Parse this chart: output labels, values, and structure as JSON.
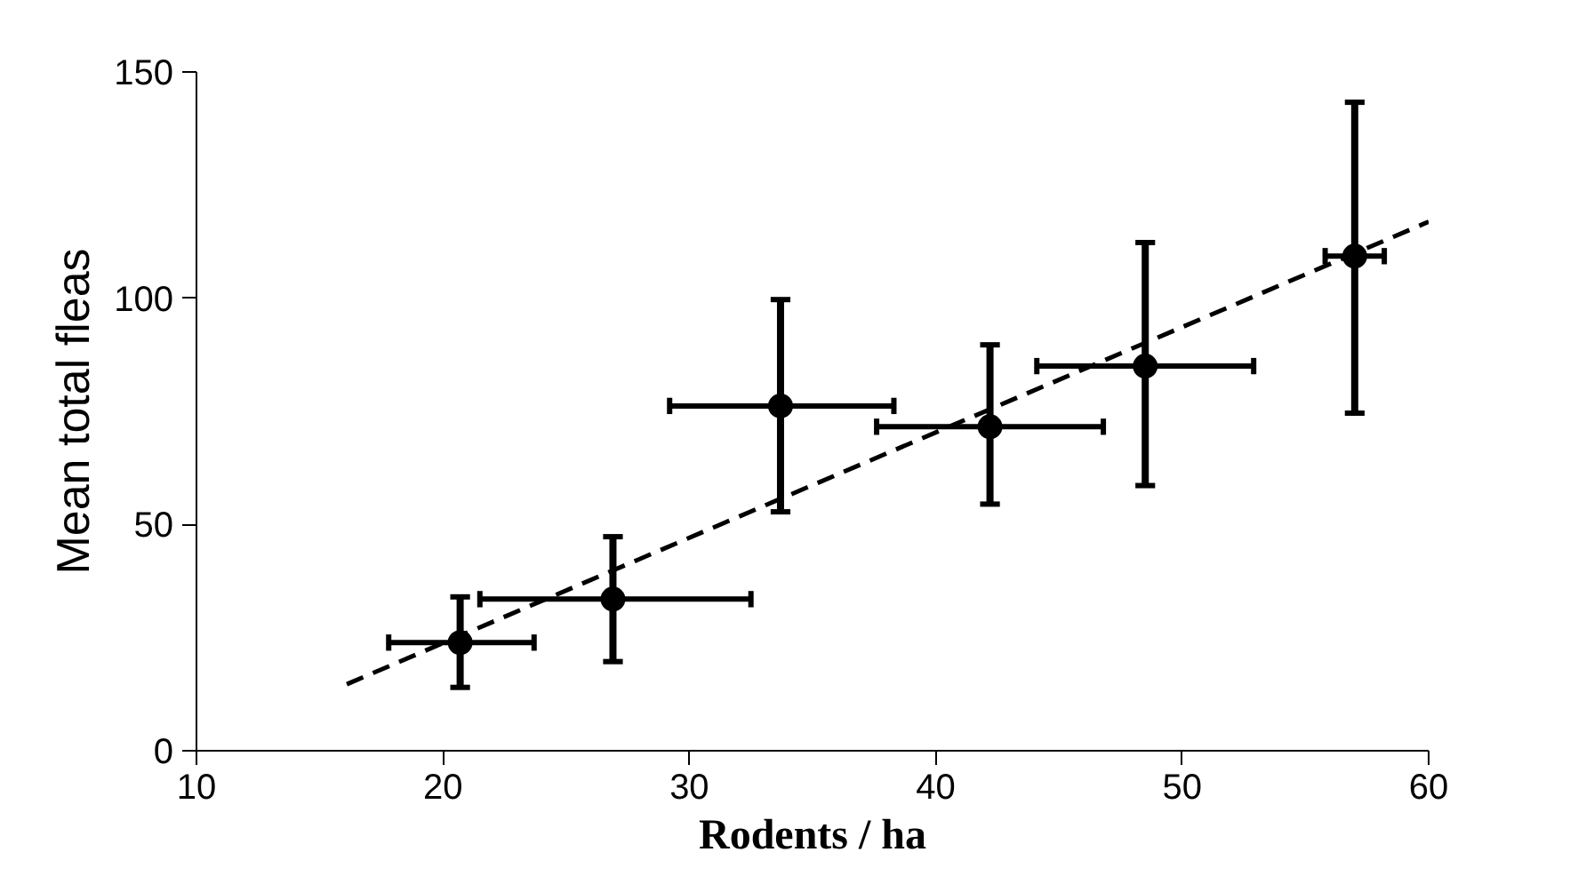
{
  "chart_data": {
    "type": "scatter",
    "xlabel": "Rodents / ha",
    "ylabel": "Mean total fleas",
    "xlim": [
      10,
      60
    ],
    "ylim": [
      0,
      150
    ],
    "xticks": [
      10,
      20,
      30,
      40,
      50,
      60
    ],
    "yticks": [
      0,
      50,
      100,
      150
    ],
    "grid": false,
    "marker": "circle",
    "series": [
      {
        "color": "#000000",
        "x": [
          20.7,
          26.9,
          33.7,
          42.2,
          48.5,
          57.0
        ],
        "values": [
          23.9,
          33.5,
          76.2,
          71.6,
          85.0,
          109.3
        ],
        "errors": [
          [
            14,
            34
          ],
          [
            19.7,
            47.3
          ],
          [
            52.8,
            99.7
          ],
          [
            54.5,
            89.7
          ],
          [
            58.6,
            112.3
          ],
          [
            74.6,
            143.3
          ]
        ],
        "xerrors": [
          [
            17.8,
            23.7
          ],
          [
            21.5,
            32.5
          ],
          [
            29.2,
            38.3
          ],
          [
            37.6,
            46.8
          ],
          [
            44.1,
            52.9
          ],
          [
            55.8,
            58.2
          ]
        ]
      },
      {
        "type": "line",
        "color": "#000000",
        "line_style": "dashed",
        "marker": "none",
        "x": [
          16.1,
          60
        ],
        "values": [
          14.7,
          116.9
        ]
      }
    ]
  }
}
